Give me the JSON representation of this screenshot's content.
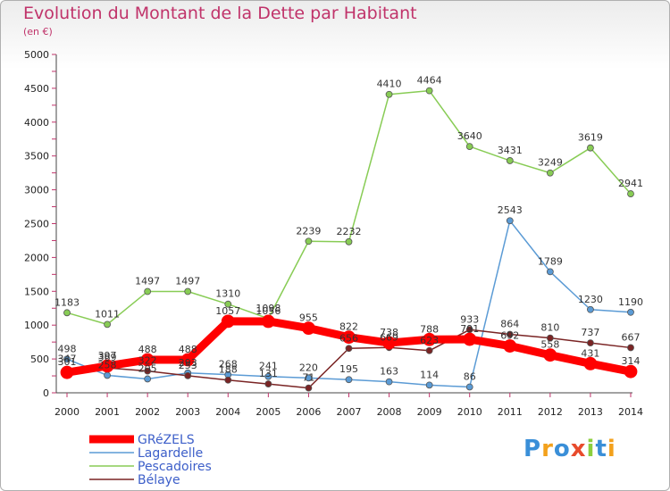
{
  "title": "Evolution du Montant de la Dette par Habitant",
  "subtitle": "(en €)",
  "logo": [
    "P",
    "r",
    "o",
    "x",
    "i",
    "t",
    "i"
  ],
  "logo_colors": [
    "#3a8fd8",
    "#f3a11c",
    "#3a8fd8",
    "#e84b2c",
    "#8ccf3e",
    "#3a8fd8",
    "#f3a11c"
  ],
  "chart_data": {
    "type": "line",
    "x": [
      "2000",
      "2001",
      "2002",
      "2003",
      "2004",
      "2005",
      "2006",
      "2007",
      "2008",
      "2009",
      "2010",
      "2011",
      "2012",
      "2013",
      "2014"
    ],
    "yticks": [
      "0",
      "500",
      "1000",
      "1500",
      "2000",
      "2500",
      "3000",
      "3500",
      "4000",
      "4500",
      "5000"
    ],
    "ylim": [
      0,
      5000
    ],
    "grid": false,
    "legend": "bottom-left",
    "series": [
      {
        "name": "GRéZELS",
        "color": "#ff0000",
        "values": [
          301,
          397,
          488,
          488,
          1057,
          1056,
          955,
          822,
          738,
          788,
          791,
          692,
          558,
          431,
          314
        ],
        "labels": [
          "301",
          "397",
          "488",
          "488",
          "1057",
          "1056",
          "955",
          "822",
          "738",
          "788",
          "791",
          "692",
          "558",
          "431",
          "314"
        ]
      },
      {
        "name": "Lagardelle",
        "color": "#5b9bd5",
        "values": [
          498,
          258,
          205,
          293,
          268,
          241,
          220,
          195,
          163,
          114,
          86,
          2543,
          1789,
          1230,
          1190
        ],
        "labels": [
          "498",
          "258",
          "205",
          "293",
          "268",
          "241",
          "220",
          "195",
          "163",
          "114",
          "86",
          "2543",
          "1789",
          "1230",
          "1190"
        ]
      },
      {
        "name": "Pescadoires",
        "color": "#88cc55",
        "values": [
          1183,
          1011,
          1497,
          1497,
          1310,
          1098,
          2239,
          2232,
          4410,
          4464,
          3640,
          3431,
          3249,
          3619,
          2941
        ],
        "labels": [
          "1183",
          "1011",
          "1497",
          "1497",
          "1310",
          "1098",
          "2239",
          "2232",
          "4410",
          "4464",
          "3640",
          "3431",
          "3249",
          "3619",
          "2941"
        ]
      },
      {
        "name": "Bélaye",
        "color": "#7a2424",
        "values": [
          347,
          369,
          322,
          253,
          188,
          131,
          71,
          656,
          669,
          623,
          933,
          864,
          810,
          737,
          667
        ],
        "labels": [
          "347",
          "369",
          "322",
          "253",
          "188",
          "131",
          "71",
          "656",
          "669",
          "623",
          "933",
          "864",
          "810",
          "737",
          "667"
        ]
      }
    ]
  }
}
